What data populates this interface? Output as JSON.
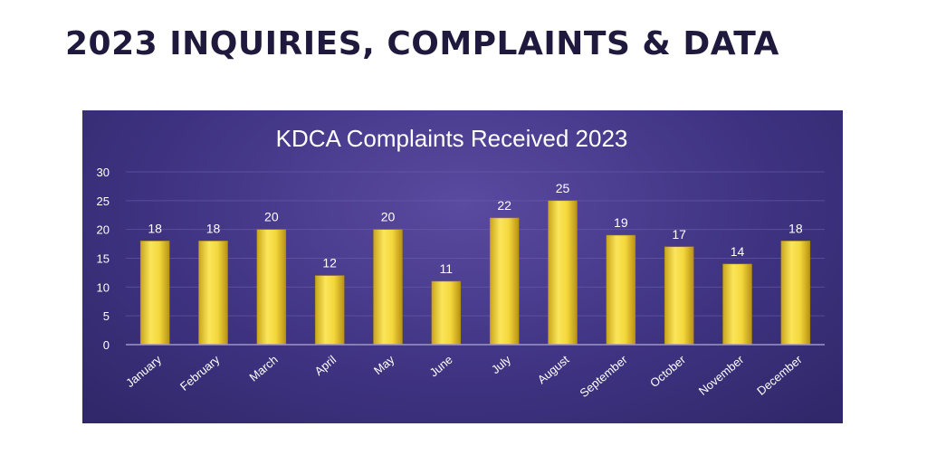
{
  "page": {
    "title": "2023 INQUIRIES, COMPLAINTS & DATA"
  },
  "colors": {
    "panel_background": "#3f3382",
    "bar_fill": "#f2d23a",
    "text": "#ffffff",
    "grid": "#6a5fae"
  },
  "chart_data": {
    "type": "bar",
    "title": "KDCA Complaints Received 2023",
    "xlabel": "",
    "ylabel": "",
    "categories": [
      "January",
      "February",
      "March",
      "April",
      "May",
      "June",
      "July",
      "August",
      "September",
      "October",
      "November",
      "December"
    ],
    "values": [
      18,
      18,
      20,
      12,
      20,
      11,
      22,
      25,
      19,
      17,
      14,
      18
    ],
    "ylim": [
      0,
      30
    ],
    "yticks": [
      0,
      5,
      10,
      15,
      20,
      25,
      30
    ],
    "grid": true,
    "data_labels": true,
    "legend": "none"
  }
}
